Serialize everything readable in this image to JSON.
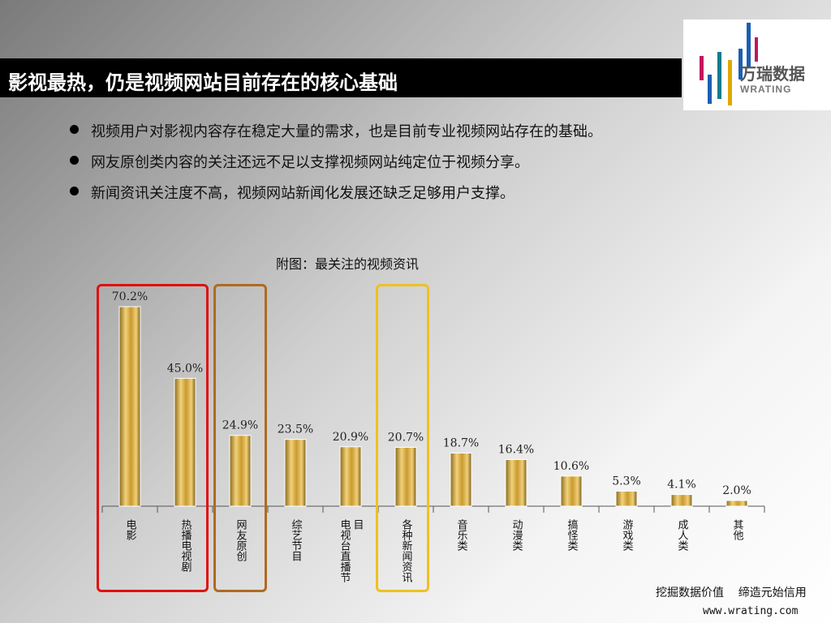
{
  "slide": {
    "title": "影视最热，仍是视频网站目前存在的核心基础",
    "bullets": [
      "视频用户对影视内容存在稳定大量的需求，也是目前专业视频网站存在的基础。",
      "网友原创类内容的关注还远不足以支撑视频网站纯定位于视频分享。",
      "新闻资讯关注度不高，视频网站新闻化发展还缺乏足够用户支撑。"
    ],
    "chart_caption": "附图：最关注的视频资讯"
  },
  "logo": {
    "text_cn": "万瑞数据",
    "text_en": "WRATING",
    "colors": [
      "#1a5fb4",
      "#c0185a",
      "#e0a800",
      "#0a7d8c"
    ]
  },
  "footer": {
    "slogan": "挖掘数据价值    缔造元始信用",
    "url": "www.wrating.com"
  },
  "highlight_colors": {
    "movie_tv": "#e01010",
    "original": "#b06a20",
    "news": "#f0c020"
  },
  "chart_data": {
    "type": "bar",
    "title": "",
    "categories": [
      "电影",
      "热播电视剧",
      "网友原创",
      "综艺节目",
      "电视台直播节目",
      "各种新闻资讯",
      "音乐类",
      "动漫类",
      "搞怪类",
      "游戏类",
      "成人类",
      "其他"
    ],
    "series": [
      {
        "values": [
          70.2,
          45.0,
          24.9,
          23.5,
          20.9,
          20.7,
          18.7,
          16.4,
          10.6,
          5.3,
          4.1,
          2.0
        ]
      }
    ],
    "data_labels": [
      "70.2%",
      "45.0%",
      "24.9%",
      "23.5%",
      "20.9%",
      "20.7%",
      "18.7%",
      "16.4%",
      "10.6%",
      "5.3%",
      "4.1%",
      "2.0%"
    ],
    "category_label_lines": [
      [
        "电影"
      ],
      [
        "热播电视剧"
      ],
      [
        "网友原创"
      ],
      [
        "综艺节目"
      ],
      [
        "电视台直播节",
        "目"
      ],
      [
        "各种新闻资讯"
      ],
      [
        "音乐类"
      ],
      [
        "动漫类"
      ],
      [
        "搞怪类"
      ],
      [
        "游戏类"
      ],
      [
        "成人类"
      ],
      [
        "其他"
      ]
    ],
    "bar_color": "#d4a83a",
    "grid": false,
    "highlights": [
      {
        "categories": [
          "电影",
          "热播电视剧"
        ],
        "color": "#e01010"
      },
      {
        "categories": [
          "网友原创"
        ],
        "color": "#b06a20"
      },
      {
        "categories": [
          "各种新闻资讯"
        ],
        "color": "#f0c020"
      }
    ]
  }
}
